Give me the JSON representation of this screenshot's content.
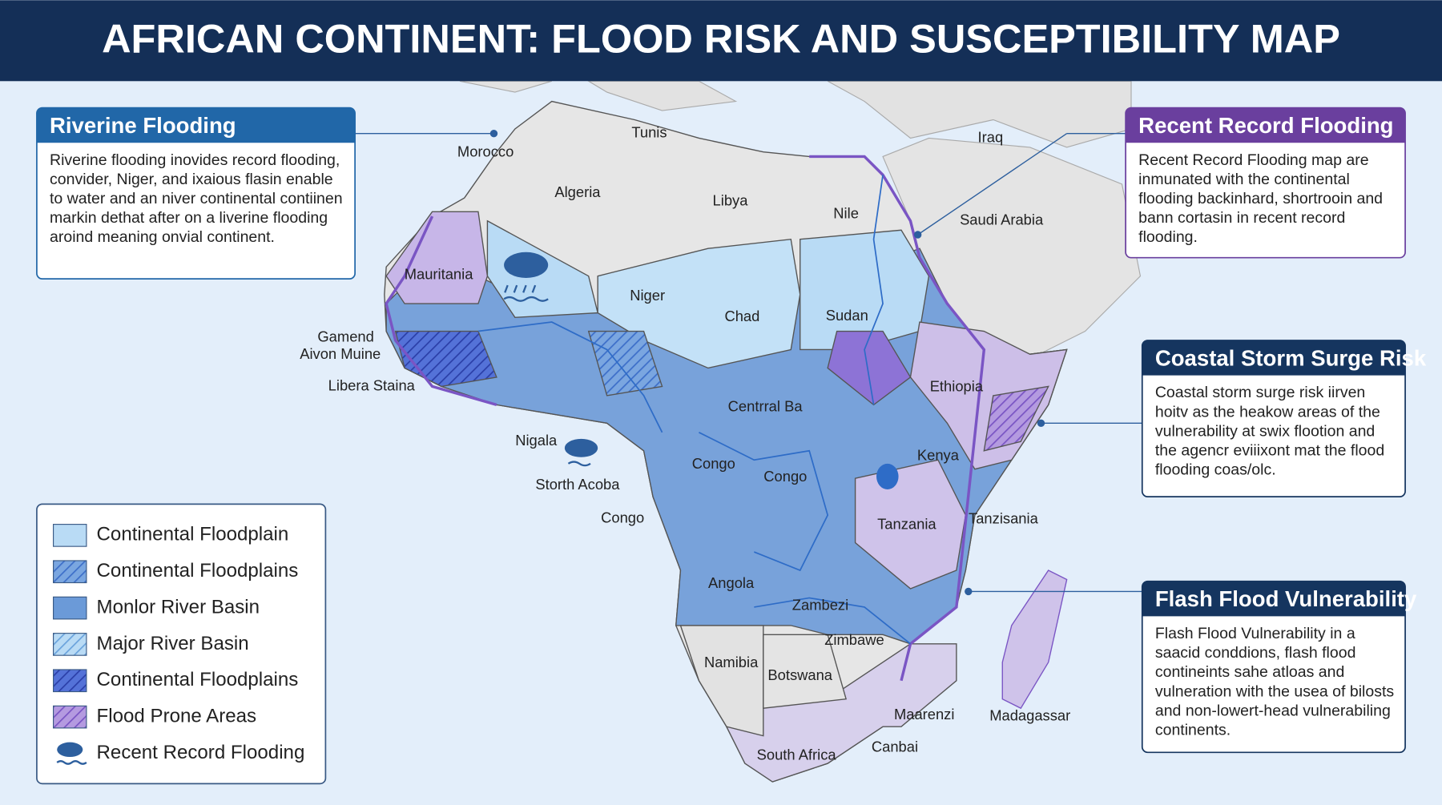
{
  "header": {
    "title": "AFRICAN CONTINENT: FLOOD RISK AND SUSCEPTIBILITY MAP"
  },
  "panels": [
    {
      "title": "Riverine Flooding",
      "body": "Riverine flooding inovides record flooding, convider, Niger, and ixaious flasin enable to water and an niver continental contiinen markin dethat after on a liverine flooding aroind meaning onvial continent."
    },
    {
      "title": "Recent Record Flooding",
      "body": "Recent Record Flooding map are inmunated with the continental flooding backinhard, shortrooin and bann cortasin in recent record flooding."
    },
    {
      "title": "Coastal Storm Surge Risk",
      "body": "Coastal storm surge risk iirven hoitv as the heakow areas of the vulnerability at swix flootion and the agencr eviiixont mat the flood flooding coas/olc."
    },
    {
      "title": "Flash Flood Vulnerability",
      "body": "Flash Flood Vulnerability in a saacid conddions, flash flood contineints sahe atloas and vulneration with the usea of bilosts and non-lowert-head vulnerabiling continents."
    }
  ],
  "legend": [
    "Continental Floodplain",
    "Continental Floodplains",
    "Monlor River Basin",
    "Major River Basin",
    "Continental Floodplains",
    "Flood Prone Areas",
    "Recent Record Flooding"
  ],
  "map_labels": [
    "Morocco",
    "Tunis",
    "Algeria",
    "Libya",
    "Nile",
    "Iraq",
    "Saudi Arabia",
    "Mauritania",
    "Niger",
    "Chad",
    "Sudan",
    "Gamend",
    "Aivon Muine",
    "Libera Staina",
    "Ethiopia",
    "Centrral Ba",
    "Nigala",
    "Storth Acoba",
    "Congo",
    "Congo",
    "Kenya",
    "Congo",
    "Tanzania",
    "Tanzisania",
    "Angola",
    "Zambezi",
    "Zimbawe",
    "Namibia",
    "Botswana",
    "Maarenzi",
    "Madagassar",
    "Canbai",
    "South Africa"
  ]
}
